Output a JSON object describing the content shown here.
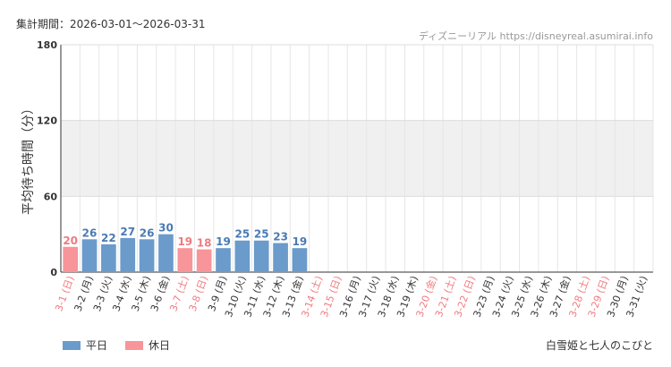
{
  "header": {
    "period": "集計期間：2026-03-01～2026-03-31",
    "credit": "ディズニーリアル https://disneyreal.asumirai.info"
  },
  "footer": {
    "attraction": "白雪姫と七人のこびと"
  },
  "colors": {
    "weekday": "#6a9bcb",
    "holiday": "#f7959a",
    "weekday_text": "#4a7ab5",
    "holiday_text": "#f07a80",
    "band": "#f0f0f0"
  },
  "chart_data": {
    "type": "bar",
    "ylabel": "平均待ち時間（分）",
    "ylim": [
      0,
      180
    ],
    "yticks": [
      0,
      60,
      120,
      180
    ],
    "shaded_band": [
      60,
      120
    ],
    "grid": true,
    "legend_position": "bottom-left",
    "categories": [
      "3-1 (日)",
      "3-2 (月)",
      "3-3 (火)",
      "3-4 (水)",
      "3-5 (木)",
      "3-6 (金)",
      "3-7 (土)",
      "3-8 (日)",
      "3-9 (月)",
      "3-10 (火)",
      "3-11 (水)",
      "3-12 (木)",
      "3-13 (金)",
      "3-14 (土)",
      "3-15 (日)",
      "3-16 (月)",
      "3-17 (火)",
      "3-18 (水)",
      "3-19 (木)",
      "3-20 (金)",
      "3-21 (土)",
      "3-22 (日)",
      "3-23 (月)",
      "3-24 (火)",
      "3-25 (水)",
      "3-26 (木)",
      "3-27 (金)",
      "3-28 (土)",
      "3-29 (日)",
      "3-30 (月)",
      "3-31 (火)"
    ],
    "values": [
      20,
      26,
      22,
      27,
      26,
      30,
      19,
      18,
      19,
      25,
      25,
      23,
      19,
      null,
      null,
      null,
      null,
      null,
      null,
      null,
      null,
      null,
      null,
      null,
      null,
      null,
      null,
      null,
      null,
      null,
      null
    ],
    "day_type": [
      "holiday",
      "weekday",
      "weekday",
      "weekday",
      "weekday",
      "weekday",
      "holiday",
      "holiday",
      "weekday",
      "weekday",
      "weekday",
      "weekday",
      "weekday",
      "holiday",
      "holiday",
      "weekday",
      "weekday",
      "weekday",
      "weekday",
      "holiday",
      "holiday",
      "holiday",
      "weekday",
      "weekday",
      "weekday",
      "weekday",
      "weekday",
      "holiday",
      "holiday",
      "weekday",
      "weekday"
    ],
    "series": [
      {
        "name": "平日",
        "key": "weekday"
      },
      {
        "name": "休日",
        "key": "holiday"
      }
    ]
  }
}
